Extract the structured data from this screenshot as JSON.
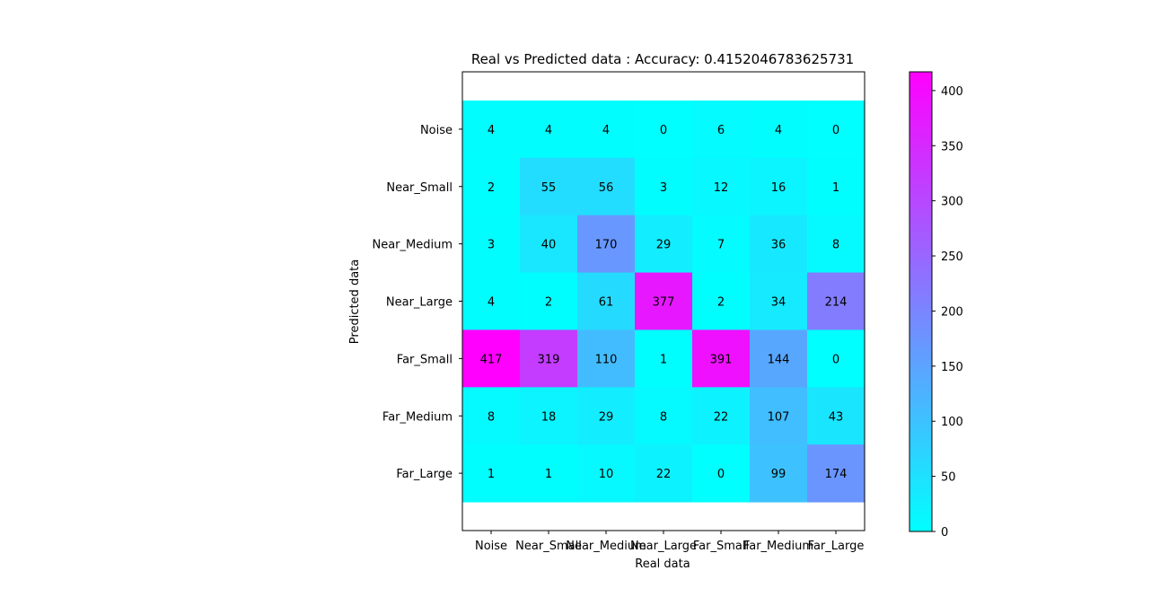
{
  "chart_data": {
    "type": "heatmap",
    "title": "Real vs Predicted data : Accuracy: 0.4152046783625731",
    "xlabel": "Real data",
    "ylabel": "Predicted data",
    "x_categories": [
      "Noise",
      "Near_Small",
      "Near_Medium",
      "Near_Large",
      "Far_Small",
      "Far_Medium",
      "Far_Large"
    ],
    "y_categories": [
      "Noise",
      "Near_Small",
      "Near_Medium",
      "Near_Large",
      "Far_Small",
      "Far_Medium",
      "Far_Large"
    ],
    "values": [
      [
        4,
        4,
        4,
        0,
        6,
        4,
        0
      ],
      [
        2,
        55,
        56,
        3,
        12,
        16,
        1
      ],
      [
        3,
        40,
        170,
        29,
        7,
        36,
        8
      ],
      [
        4,
        2,
        61,
        377,
        2,
        34,
        214
      ],
      [
        417,
        319,
        110,
        1,
        391,
        144,
        0
      ],
      [
        8,
        18,
        29,
        8,
        22,
        107,
        43
      ],
      [
        1,
        1,
        10,
        22,
        0,
        99,
        174
      ]
    ],
    "colormap": "cool",
    "color_low": "#00ffff",
    "color_high": "#ff00ff",
    "vmin": 0,
    "vmax": 417,
    "ylim": [
      -1,
      7
    ],
    "colorbar_ticks": [
      0,
      50,
      100,
      150,
      200,
      250,
      300,
      350,
      400
    ]
  }
}
